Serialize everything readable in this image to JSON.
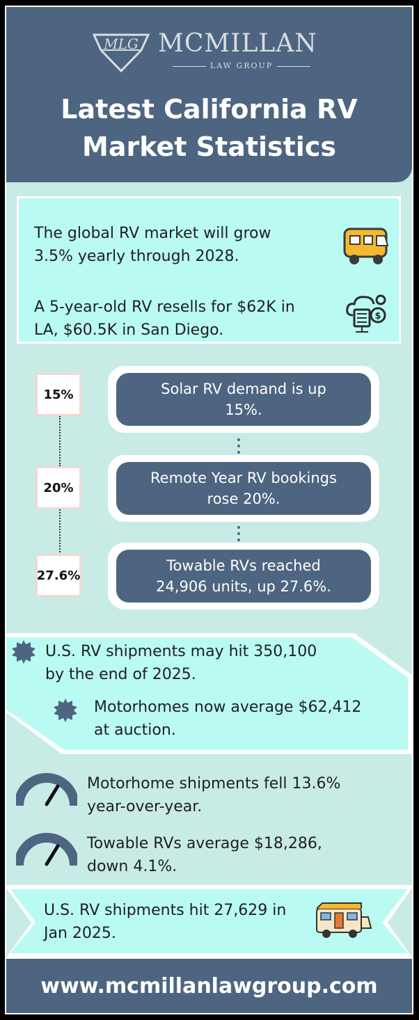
{
  "header": {
    "logo_name": "MCMILLAN",
    "logo_sub": "LAW GROUP",
    "logo_mark": "MLG",
    "title_line1": "Latest California RV",
    "title_line2": "Market Statistics"
  },
  "intro": {
    "stat1_line1": "The global RV market will grow",
    "stat1_line2": "3.5% yearly through 2028.",
    "stat2_line1": "A 5-year-old RV resells for $62K in",
    "stat2_line2": "LA, $60.5K in San Diego.",
    "icon1": "camper-van-icon",
    "icon2": "cloud-money-icon"
  },
  "timeline": [
    {
      "badge": "15%",
      "line1": "Solar RV demand is up",
      "line2": "15%."
    },
    {
      "badge": "20%",
      "line1": "Remote Year RV bookings",
      "line2": "rose 20%."
    },
    {
      "badge": "27.6%",
      "line1": "Towable RVs reached",
      "line2": "24,906 units, up 27.6%."
    }
  ],
  "shipments": {
    "item1_line1": "U.S. RV shipments may hit 350,100",
    "item1_line2": "by the end of 2025.",
    "item2_line1": "Motorhomes now average $62,412",
    "item2_line2": "at auction."
  },
  "gauges": {
    "item1_line1": "Motorhome shipments fell 13.6%",
    "item1_line2": "year-over-year.",
    "item2_line1": "Towable RVs average $18,286,",
    "item2_line2": "down 4.1%."
  },
  "final": {
    "line1": "U.S. RV shipments hit 27,629 in",
    "line2": "Jan 2025.",
    "icon": "rv-trailer-icon"
  },
  "footer": {
    "url": "www.mcmillanlawgroup.com"
  },
  "colors": {
    "navy": "#4d6580",
    "mint": "#c8ebe6",
    "aqua": "#b9fbf3"
  }
}
